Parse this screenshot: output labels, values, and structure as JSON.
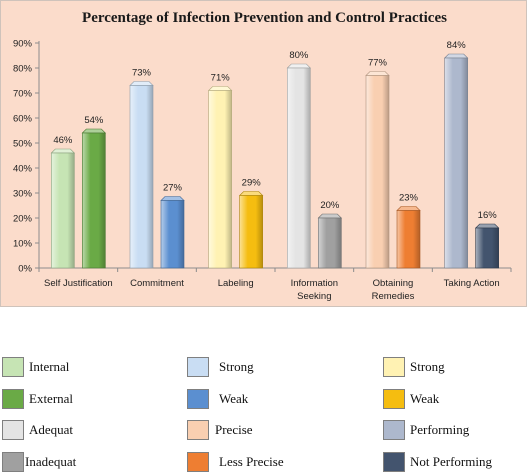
{
  "chart_data": {
    "type": "bar",
    "title": "Percentage of Infection Prevention and Control Practices",
    "xlabel": "",
    "ylabel": "",
    "ylim": [
      0,
      90
    ],
    "yticks": [
      "0%",
      "10%",
      "20%",
      "30%",
      "40%",
      "50%",
      "60%",
      "70%",
      "80%",
      "90%"
    ],
    "grid": false,
    "categories": [
      [
        "Self Justification"
      ],
      [
        "Commitment"
      ],
      [
        "Labeling"
      ],
      [
        "Information",
        "Seeking"
      ],
      [
        "Obtaining",
        "Remedies"
      ],
      [
        "Taking Action"
      ]
    ],
    "groups": [
      {
        "bars": [
          {
            "value": 46,
            "label": "46%",
            "color": "#c6e4b4"
          },
          {
            "value": 54,
            "label": "54%",
            "color": "#6aaa46"
          }
        ]
      },
      {
        "bars": [
          {
            "value": 73,
            "label": "73%",
            "color": "#c9ddf3"
          },
          {
            "value": 27,
            "label": "27%",
            "color": "#5b8fd0"
          }
        ]
      },
      {
        "bars": [
          {
            "value": 71,
            "label": "71%",
            "color": "#fff2b3"
          },
          {
            "value": 29,
            "label": "29%",
            "color": "#f5bd10"
          }
        ]
      },
      {
        "bars": [
          {
            "value": 80,
            "label": "80%",
            "color": "#e4e4e4"
          },
          {
            "value": 20,
            "label": "20%",
            "color": "#a0a0a0"
          }
        ]
      },
      {
        "bars": [
          {
            "value": 77,
            "label": "77%",
            "color": "#f9cfb1"
          },
          {
            "value": 23,
            "label": "23%",
            "color": "#ee7e32"
          }
        ]
      },
      {
        "bars": [
          {
            "value": 84,
            "label": "84%",
            "color": "#adb8cd"
          },
          {
            "value": 16,
            "label": "16%",
            "color": "#43546e"
          }
        ]
      }
    ]
  },
  "legend": [
    {
      "label": "Internal",
      "color": "#c6e4b4"
    },
    {
      "label": "Strong",
      "color": "#c9ddf3"
    },
    {
      "label": "Strong",
      "color": "#fff2b3"
    },
    {
      "label": "External",
      "color": "#6aaa46"
    },
    {
      "label": "Weak",
      "color": "#5b8fd0"
    },
    {
      "label": "Weak",
      "color": "#f5bd10"
    },
    {
      "label": "Adequat",
      "color": "#e4e4e4"
    },
    {
      "label": "Precise",
      "color": "#f9cfb1"
    },
    {
      "label": "Performing",
      "color": "#adb8cd"
    },
    {
      "label": "Inadequat",
      "color": "#a0a0a0"
    },
    {
      "label": "Less Precise",
      "color": "#ee7e32"
    },
    {
      "label": "Not Performing",
      "color": "#43546e"
    }
  ]
}
